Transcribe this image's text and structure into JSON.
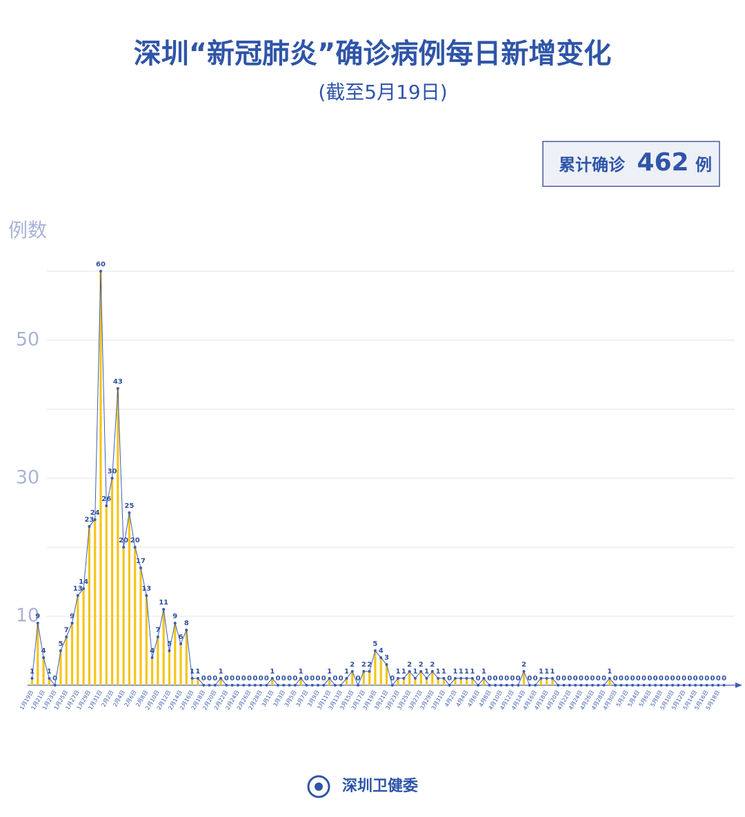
{
  "chart_data": {
    "type": "bar-line",
    "title": "深圳“新冠肺炎”确诊病例每日新增变化",
    "subtitle": "(截至5月19日)",
    "total": {
      "label": "累计确诊",
      "value": 462,
      "unit": "例"
    },
    "y_label": "例数",
    "source": "深圳卫健委",
    "categories": [
      "1月19日",
      null,
      "1月21日",
      null,
      "1月23日",
      null,
      "1月25日",
      null,
      "1月27日",
      null,
      "1月29日",
      null,
      "1月31日",
      null,
      "2月2日",
      null,
      "2月4日",
      null,
      "2月6日",
      null,
      "2月8日",
      null,
      "2月10日",
      null,
      "2月12日",
      null,
      "2月14日",
      null,
      "2月16日",
      null,
      "2月18日",
      null,
      "2月20日",
      null,
      "2月22日",
      null,
      "2月24日",
      null,
      "2月26日",
      null,
      "2月28日",
      null,
      "3月1日",
      null,
      "3月3日",
      null,
      "3月5日",
      null,
      "3月7日",
      null,
      "3月9日",
      null,
      "3月11日",
      null,
      "3月13日",
      null,
      "3月15日",
      null,
      "3月17日",
      null,
      "3月19日",
      null,
      "3月21日",
      null,
      "3月23日",
      null,
      "3月25日",
      null,
      "3月27日",
      null,
      "3月29日",
      null,
      "3月31日",
      null,
      "4月2日",
      null,
      "4月4日",
      null,
      "4月6日",
      null,
      "4月8日",
      null,
      "4月10日",
      null,
      "4月12日",
      null,
      "4月14日",
      null,
      "4月16日",
      null,
      "4月18日",
      null,
      "4月20日",
      null,
      "4月22日",
      null,
      "4月24日",
      null,
      "4月26日",
      null,
      "4月28日",
      null,
      "4月30日",
      null,
      "5月2日",
      null,
      "5月4日",
      null,
      "5月6日",
      null,
      "5月8日",
      null,
      "5月10日",
      null,
      "5月12日",
      null,
      "5月14日",
      null,
      "5月16日",
      null,
      "5月18日",
      null
    ],
    "values": [
      1,
      9,
      4,
      1,
      0,
      5,
      7,
      9,
      13,
      14,
      23,
      24,
      60,
      26,
      30,
      43,
      20,
      25,
      20,
      17,
      13,
      4,
      7,
      11,
      5,
      9,
      6,
      8,
      1,
      1,
      0,
      0,
      0,
      1,
      0,
      0,
      0,
      0,
      0,
      0,
      0,
      0,
      1,
      0,
      0,
      0,
      0,
      1,
      0,
      0,
      0,
      0,
      1,
      0,
      0,
      1,
      2,
      0,
      2,
      2,
      5,
      4,
      3,
      0,
      1,
      1,
      2,
      1,
      2,
      1,
      2,
      1,
      1,
      0,
      1,
      1,
      1,
      1,
      0,
      1,
      0,
      0,
      0,
      0,
      0,
      0,
      2,
      0,
      0,
      1,
      1,
      1,
      0,
      0,
      0,
      0,
      0,
      0,
      0,
      0,
      0,
      1,
      0,
      0,
      0,
      0,
      0,
      0,
      0,
      0,
      0,
      0,
      0,
      0,
      0,
      0,
      0,
      0,
      0,
      0,
      0,
      0
    ],
    "bar_color": "#f5c518",
    "line_color": "#3d5db3",
    "ylim": [
      0,
      60
    ],
    "yticks": [
      10,
      30,
      50
    ],
    "ygrid": [
      10,
      20,
      30,
      40,
      50,
      60
    ]
  }
}
